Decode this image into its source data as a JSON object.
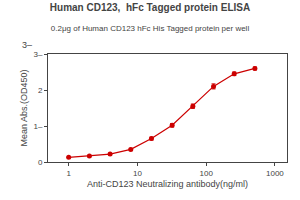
{
  "chart_data": {
    "type": "line",
    "title": "Human CD123,  hFc Tagged protein ELISA",
    "subtitle": "0.2μg of Human CD123 hFc His Tagged protein per well",
    "x_label": "Anti-CD123 Neutralizing antibody(ng/ml)",
    "y_label": "Mean Abs.(OD450)",
    "x": [
      1,
      2,
      4,
      8,
      16,
      32,
      64,
      128,
      256,
      512
    ],
    "values": [
      0.13,
      0.17,
      0.22,
      0.35,
      0.65,
      1.02,
      1.55,
      2.1,
      2.45,
      2.6
    ],
    "error": [
      0.015,
      0.015,
      0.02,
      0.03,
      0.04,
      0.05,
      0.06,
      0.07,
      0.05,
      0.04
    ],
    "color": "#CC0000",
    "marker": "circle",
    "line_style": "solid",
    "log": "x",
    "xlim": [
      0.5,
      1500
    ],
    "xticks": [
      1,
      10,
      100,
      1000
    ],
    "ylim": [
      0,
      3.0
    ],
    "yticks": [
      0,
      {
        "value": 1,
        "label": "1–"
      },
      2,
      {
        "value": 3,
        "label": "3–"
      }
    ],
    "grid": false,
    "annotations": [
      "3–"
    ]
  }
}
